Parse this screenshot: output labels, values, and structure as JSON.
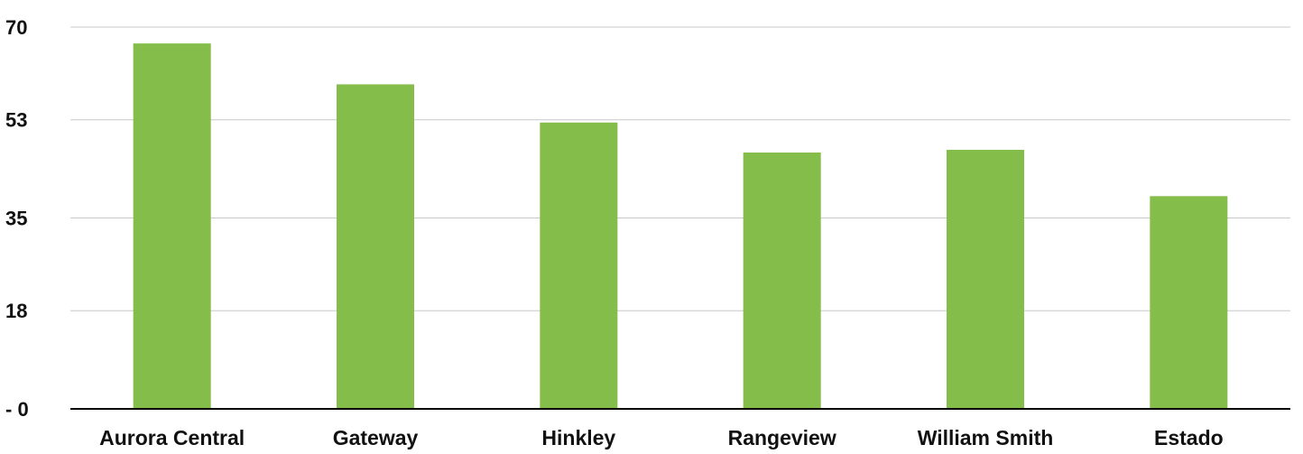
{
  "chart_data": {
    "type": "bar",
    "categories": [
      "Aurora Central",
      "Gateway",
      "Hinkley",
      "Rangeview",
      "William Smith",
      "Estado"
    ],
    "values": [
      67,
      59.5,
      52.5,
      47,
      47.5,
      39
    ],
    "title": "",
    "xlabel": "",
    "ylabel": "",
    "ylim": [
      0,
      70
    ],
    "yticks": [
      0,
      18,
      35,
      53,
      70
    ],
    "ytick_labels": [
      "- 0",
      "18",
      "35",
      "53",
      "70"
    ],
    "grid": true,
    "legend": "none",
    "bar_color": "#84bd4a"
  }
}
